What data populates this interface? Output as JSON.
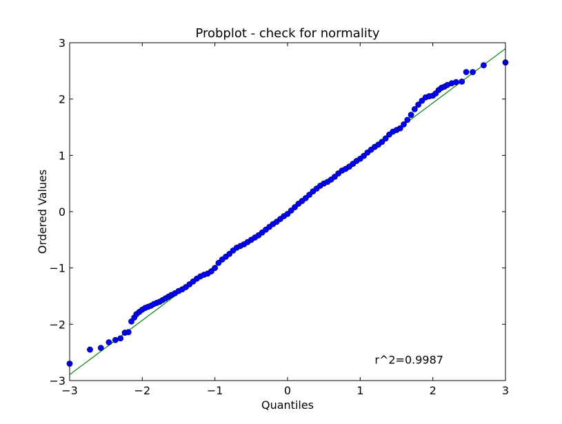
{
  "chart_data": {
    "type": "scatter",
    "title": "Probplot - check for normality",
    "xlabel": "Quantiles",
    "ylabel": "Ordered Values",
    "xlim": [
      -3,
      3
    ],
    "ylim": [
      -3,
      3
    ],
    "xticks": [
      "−3",
      "−2",
      "−1",
      "0",
      "1",
      "2",
      "3"
    ],
    "yticks": [
      "−3",
      "−2",
      "−1",
      "0",
      "1",
      "2",
      "3"
    ],
    "grid": false,
    "legend": "none",
    "annotation": "r^2=0.9987",
    "colors": {
      "points": "#0000ff",
      "point_edge": "#000066",
      "fit_line": "#008000"
    },
    "fit_line": {
      "slope": 0.965,
      "intercept": 0.0,
      "x": [
        -3,
        3
      ]
    },
    "series": [
      {
        "kind": "points",
        "x": [
          -3.0,
          -2.72,
          -2.57,
          -2.46,
          -2.37,
          -2.3,
          -2.24,
          -2.19,
          -2.15,
          -2.11,
          -2.08,
          -2.04,
          -2.0,
          -1.96,
          -1.92,
          -1.88,
          -1.84,
          -1.8,
          -1.76,
          -1.72,
          -1.68,
          -1.64,
          -1.6,
          -1.55,
          -1.5,
          -1.45,
          -1.4,
          -1.35,
          -1.3,
          -1.25,
          -1.2,
          -1.15,
          -1.1,
          -1.05,
          -1.0,
          -0.95,
          -0.9,
          -0.85,
          -0.8,
          -0.75,
          -0.7,
          -0.65,
          -0.6,
          -0.55,
          -0.5,
          -0.45,
          -0.4,
          -0.35,
          -0.3,
          -0.25,
          -0.2,
          -0.15,
          -0.1,
          -0.05,
          0.0,
          0.05,
          0.1,
          0.15,
          0.2,
          0.25,
          0.3,
          0.35,
          0.4,
          0.45,
          0.5,
          0.55,
          0.6,
          0.65,
          0.7,
          0.75,
          0.8,
          0.85,
          0.9,
          0.95,
          1.0,
          1.05,
          1.1,
          1.15,
          1.2,
          1.25,
          1.3,
          1.35,
          1.4,
          1.45,
          1.5,
          1.55,
          1.6,
          1.65,
          1.7,
          1.75,
          1.8,
          1.85,
          1.9,
          1.95,
          2.0,
          2.04,
          2.08,
          2.12,
          2.16,
          2.2,
          2.26,
          2.32,
          2.4,
          2.46,
          2.55,
          2.7,
          3.0
        ],
        "y": [
          -2.7,
          -2.45,
          -2.42,
          -2.32,
          -2.28,
          -2.25,
          -2.15,
          -2.14,
          -1.95,
          -1.88,
          -1.82,
          -1.78,
          -1.74,
          -1.71,
          -1.69,
          -1.67,
          -1.64,
          -1.62,
          -1.6,
          -1.57,
          -1.54,
          -1.51,
          -1.48,
          -1.45,
          -1.41,
          -1.38,
          -1.34,
          -1.29,
          -1.24,
          -1.19,
          -1.15,
          -1.12,
          -1.1,
          -1.06,
          -1.0,
          -0.91,
          -0.85,
          -0.8,
          -0.75,
          -0.69,
          -0.64,
          -0.61,
          -0.58,
          -0.54,
          -0.5,
          -0.46,
          -0.42,
          -0.37,
          -0.32,
          -0.27,
          -0.22,
          -0.18,
          -0.13,
          -0.08,
          -0.04,
          0.02,
          0.08,
          0.14,
          0.19,
          0.24,
          0.3,
          0.36,
          0.41,
          0.46,
          0.5,
          0.53,
          0.57,
          0.62,
          0.68,
          0.73,
          0.76,
          0.8,
          0.85,
          0.9,
          0.94,
          0.99,
          1.05,
          1.1,
          1.15,
          1.19,
          1.24,
          1.3,
          1.37,
          1.42,
          1.45,
          1.48,
          1.55,
          1.63,
          1.72,
          1.82,
          1.9,
          1.97,
          2.03,
          2.05,
          2.06,
          2.1,
          2.16,
          2.2,
          2.22,
          2.25,
          2.28,
          2.3,
          2.31,
          2.48,
          2.48,
          2.6,
          2.65
        ]
      }
    ]
  }
}
